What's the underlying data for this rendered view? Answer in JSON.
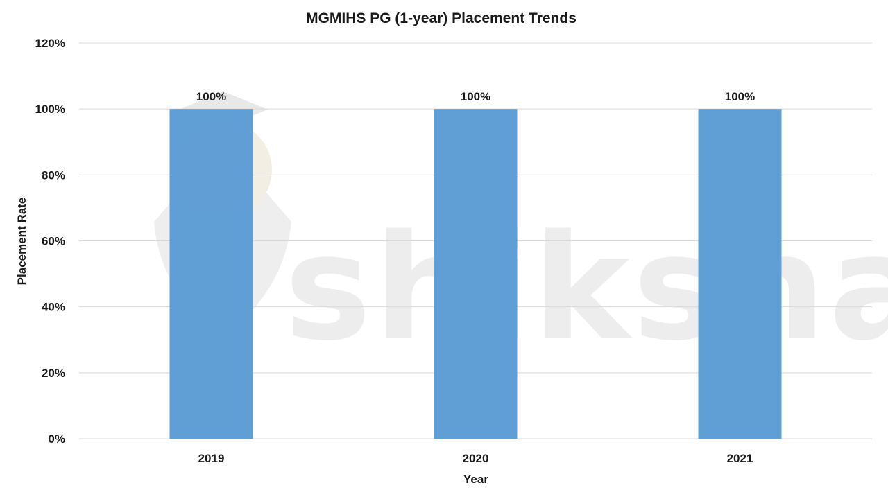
{
  "chart_data": {
    "type": "bar",
    "title": "MGMIHS PG (1-year) Placement Trends",
    "xlabel": "Year",
    "ylabel": "Placement Rate",
    "categories": [
      "2019",
      "2020",
      "2021"
    ],
    "series": [
      {
        "values": [
          100,
          100,
          100
        ],
        "color": "#5b9bd5"
      }
    ],
    "data_labels": [
      "100%",
      "100%",
      "100%"
    ],
    "ylim": [
      0,
      120
    ],
    "yticks": [
      0,
      20,
      40,
      60,
      80,
      100,
      120
    ],
    "ytick_labels": [
      "0%",
      "20%",
      "40%",
      "60%",
      "80%",
      "100%",
      "120%"
    ],
    "grid": true,
    "legend": "none"
  },
  "watermark": {
    "text": "shiksha",
    "icon": "shiksha-logo-icon"
  },
  "colors": {
    "bar": "#5b9bd5",
    "grid": "#d9d9d9",
    "text": "#1a1a1a"
  }
}
